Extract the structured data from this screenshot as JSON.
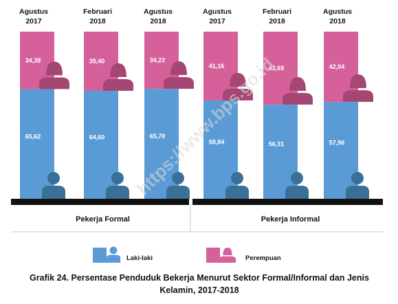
{
  "chart_data": {
    "type": "bar",
    "stacked": true,
    "orientation": "vertical",
    "categories": [
      [
        "Agustus",
        "2017"
      ],
      [
        "Februari",
        "2018"
      ],
      [
        "Agustus",
        "2018"
      ],
      [
        "Agustus",
        "2017"
      ],
      [
        "Februari",
        "2018"
      ],
      [
        "Agustus",
        "2018"
      ]
    ],
    "value_labels": {
      "laki": [
        "65,62",
        "64,60",
        "65,78",
        "58,84",
        "56,31",
        "57,96"
      ],
      "perempuan": [
        "34,38",
        "35,40",
        "34,22",
        "41,16",
        "43,69",
        "42,04"
      ]
    },
    "series": [
      {
        "name": "Laki-laki",
        "values": [
          65.62,
          64.6,
          65.78,
          58.84,
          56.31,
          57.96
        ],
        "color": "#5b9bd5",
        "icon": "male-person-icon"
      },
      {
        "name": "Perempuan",
        "values": [
          34.38,
          35.4,
          34.22,
          41.16,
          43.69,
          42.04
        ],
        "color": "#d6619a",
        "icon": "female-person-icon"
      }
    ],
    "groups": [
      {
        "label": "Pekerja Formal",
        "category_indices": [
          0,
          1,
          2
        ]
      },
      {
        "label": "Pekerja Informal",
        "category_indices": [
          3,
          4,
          5
        ]
      }
    ],
    "ylim": [
      0,
      100
    ],
    "grid": false,
    "legend_position": "bottom",
    "caption": [
      "Grafik 24. Persentase Penduduk Bekerja Menurut Sektor Formal/Informal dan Jenis",
      "Kelamin, 2017-2018"
    ],
    "watermark": "https://www.bps.go.id",
    "colors": {
      "base_bar": "#111111",
      "icon_male": "#3a6f98",
      "icon_female": "#a54773"
    }
  }
}
